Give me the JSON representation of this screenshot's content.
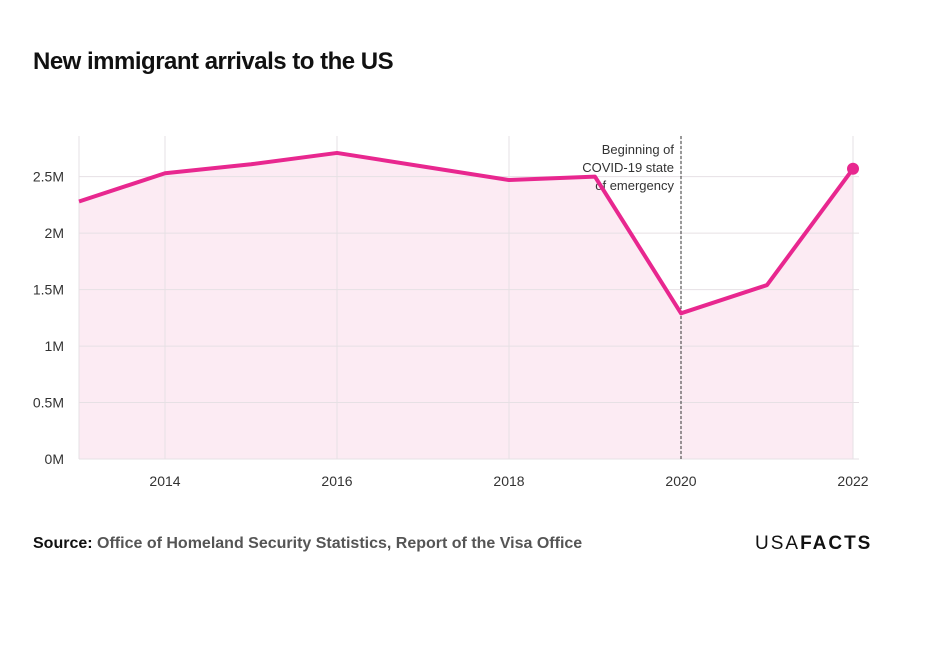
{
  "chart_data": {
    "type": "area",
    "title": "New immigrant arrivals to the US",
    "x": [
      2013,
      2014,
      2015,
      2016,
      2017,
      2018,
      2019,
      2020,
      2021,
      2022
    ],
    "series": [
      {
        "values": [
          2.28,
          2.53,
          2.61,
          2.71,
          2.59,
          2.47,
          2.5,
          1.29,
          1.54,
          2.57
        ]
      }
    ],
    "y_unit": "M",
    "xlim": [
      2013,
      2022
    ],
    "ylim": [
      0,
      2.86
    ],
    "x_ticks": [
      "2014",
      "2016",
      "2018",
      "2020",
      "2022"
    ],
    "y_ticks": [
      "0M",
      "0.5M",
      "1M",
      "1.5M",
      "2M",
      "2.5M"
    ],
    "grid": true,
    "line_color": "#e8278f",
    "fill_color": "#fcebf3",
    "annotation": {
      "x": 2020,
      "lines": [
        "Beginning of",
        "COVID-19 state",
        "of emergency"
      ]
    },
    "endpoint_marker": true
  },
  "footer": {
    "source_label": "Source:",
    "source_text": "Office of Homeland Security Statistics, Report of the Visa Office",
    "logo_light": "USA",
    "logo_bold": "FACTS"
  }
}
